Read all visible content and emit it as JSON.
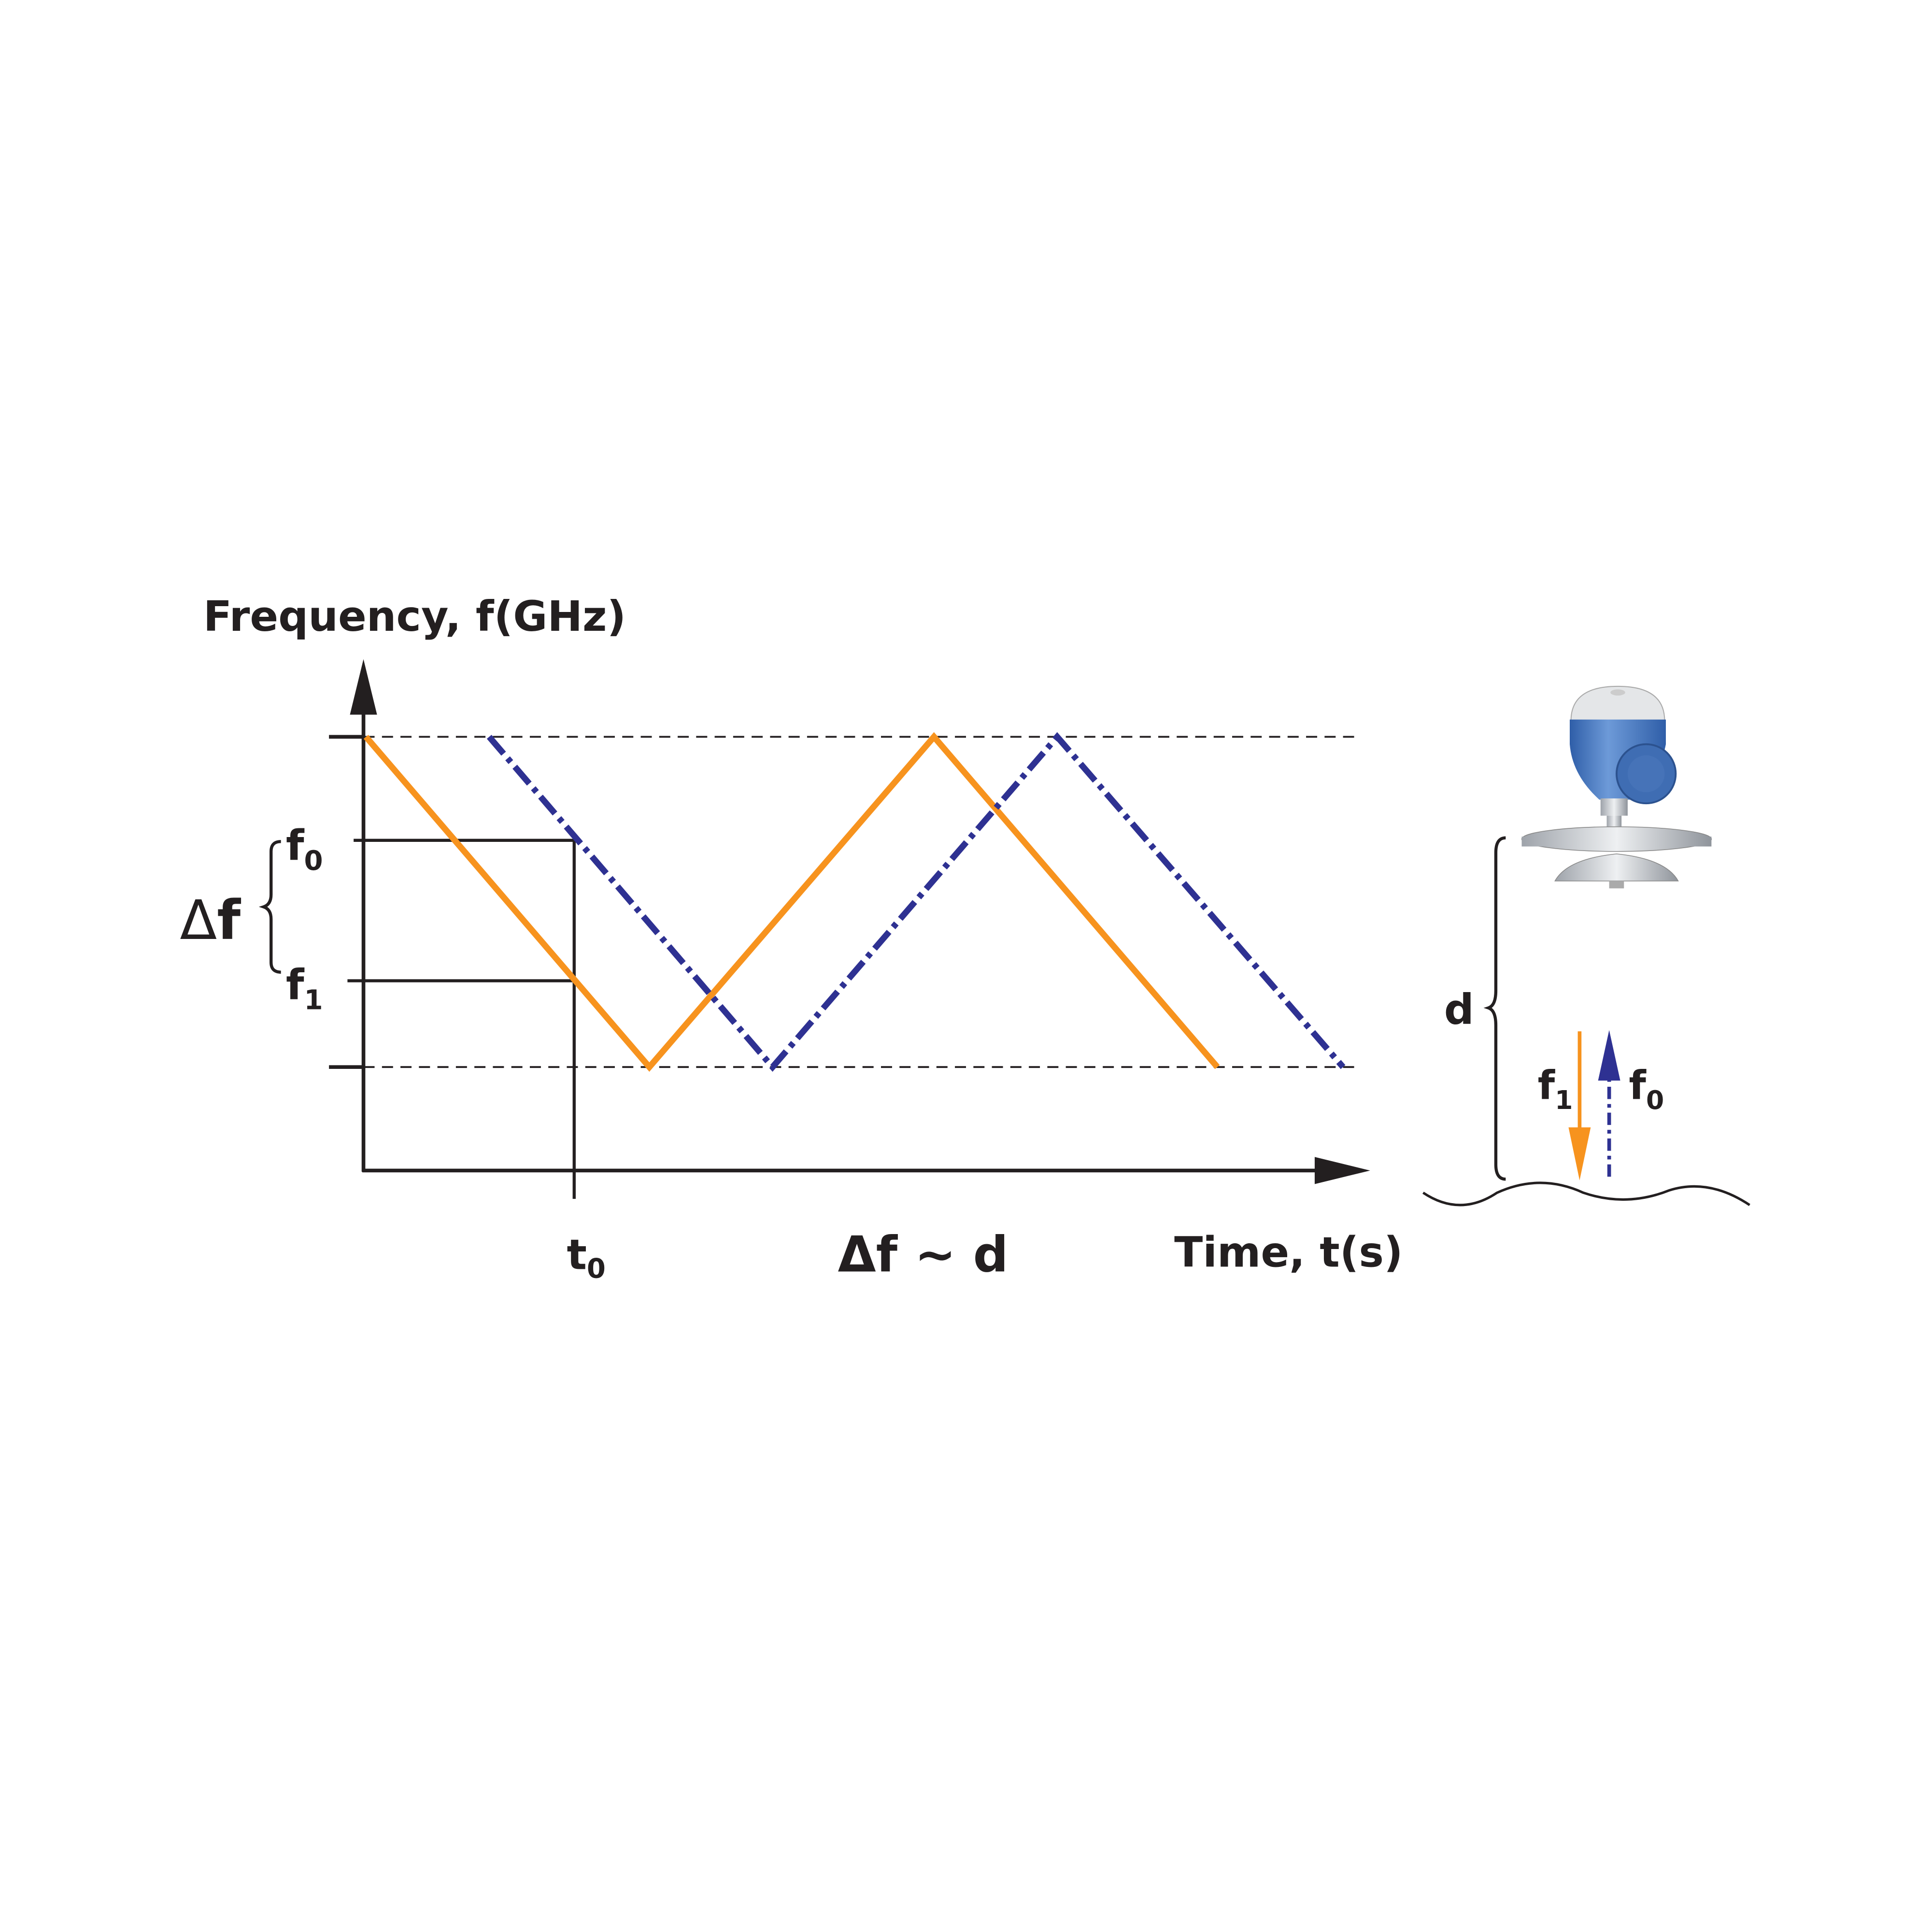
{
  "labels": {
    "y_axis": "Frequency, f(GHz)",
    "x_axis": "Time, t(s)",
    "delta_symbol": "Δ",
    "delta_f_letter": "f",
    "f_letter": "f",
    "sub0": "0",
    "sub1": "1",
    "t_letter": "t",
    "relation": "Δf ∼ d",
    "distance": "d"
  },
  "colors": {
    "transmitted": "#f7931e",
    "received": "#2e3192",
    "axis": "#231f20",
    "device_blue": "#3f6db3",
    "device_metal": "#b8bcc2"
  },
  "signals": [
    {
      "role": "transmitted",
      "style": "solid",
      "color": "#f7931e"
    },
    {
      "role": "received",
      "style": "dash-dot",
      "color": "#2e3192"
    }
  ],
  "icons": {
    "device": "radar-level-transmitter-icon",
    "surface": "liquid-surface-icon"
  }
}
